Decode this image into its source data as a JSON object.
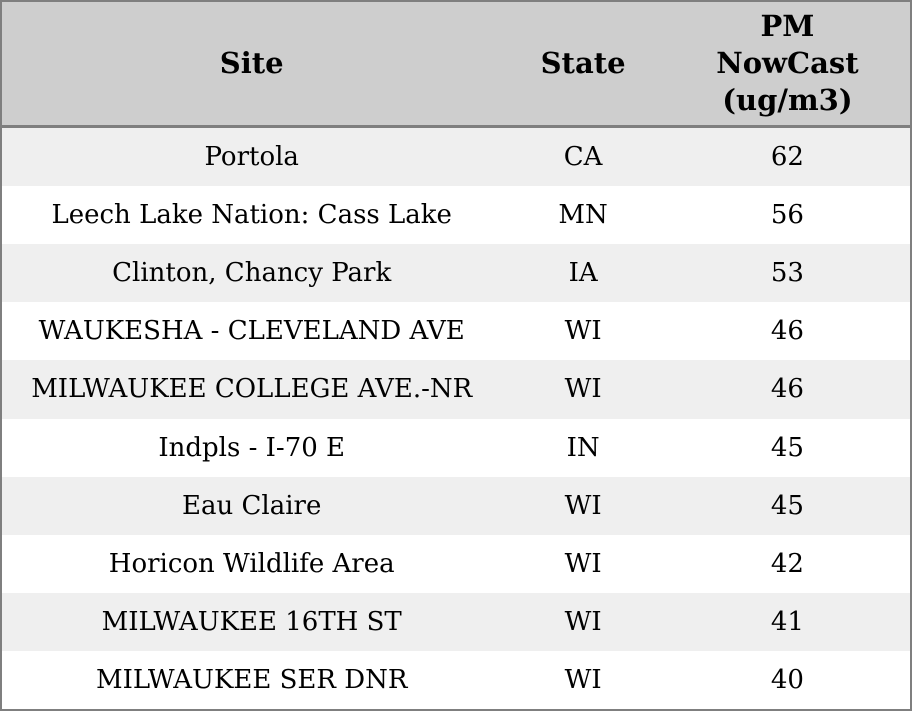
{
  "header": {
    "site": "Site",
    "state": "State",
    "pm": "PM\nNowCast\n(ug/m3)"
  },
  "colors": {
    "header_bg": "#cecece",
    "row_alt_bg": "#efefef",
    "row_bg": "#ffffff",
    "border": "#7f7f7f",
    "text": "#000000"
  },
  "chart_data": {
    "type": "table",
    "columns": [
      "Site",
      "State",
      "PM NowCast (ug/m3)"
    ],
    "rows": [
      [
        "Portola",
        "CA",
        62
      ],
      [
        "Leech Lake Nation: Cass Lake",
        "MN",
        56
      ],
      [
        "Clinton, Chancy Park",
        "IA",
        53
      ],
      [
        "WAUKESHA - CLEVELAND AVE",
        "WI",
        46
      ],
      [
        "MILWAUKEE COLLEGE AVE.-NR",
        "WI",
        46
      ],
      [
        "Indpls - I-70 E",
        "IN",
        45
      ],
      [
        "Eau Claire",
        "WI",
        45
      ],
      [
        "Horicon Wildlife Area",
        "WI",
        42
      ],
      [
        "MILWAUKEE 16TH ST",
        "WI",
        41
      ],
      [
        "MILWAUKEE SER DNR",
        "WI",
        40
      ]
    ]
  }
}
